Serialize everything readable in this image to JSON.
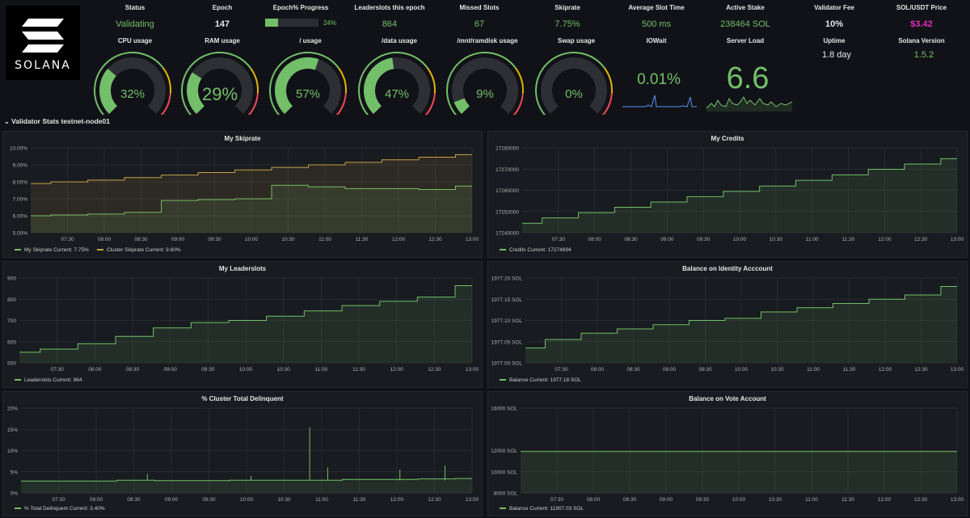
{
  "logo": {
    "text": "SOLANA"
  },
  "stats": [
    {
      "title": "Status",
      "value": "Validating",
      "color": "#73bf69"
    },
    {
      "title": "Epoch",
      "value": "147",
      "color": "#e6e6e6"
    },
    {
      "title": "Epoch% Progress",
      "value": "24%",
      "color": "#73bf69",
      "progress": 0.24
    },
    {
      "title": "Leaderslots this epoch",
      "value": "864",
      "color": "#73bf69"
    },
    {
      "title": "Missed Slots",
      "value": "67",
      "color": "#73bf69"
    },
    {
      "title": "Skiprate",
      "value": "7.75%",
      "color": "#73bf69"
    },
    {
      "title": "Average Slot Time",
      "value": "500 ms",
      "color": "#73bf69"
    },
    {
      "title": "Active Stake",
      "value": "238464 SOL",
      "color": "#73bf69"
    },
    {
      "title": "Validator Fee",
      "value": "10%",
      "color": "#e6e6e6"
    },
    {
      "title": "SOL/USDT Price",
      "value": "$3.42",
      "color": "#e02fbd"
    }
  ],
  "gauges": [
    {
      "title": "CPU usage",
      "value": "32%",
      "level": 0.32
    },
    {
      "title": "RAM usage",
      "value": "29%",
      "level": 0.29
    },
    {
      "title": "/ usage",
      "value": "57%",
      "level": 0.57
    },
    {
      "title": "/data usage",
      "value": "47%",
      "level": 0.47
    },
    {
      "title": "/mnt/ramdisk usage",
      "value": "9%",
      "level": 0.09
    },
    {
      "title": "Swap usage",
      "value": "0%",
      "level": 0.0
    }
  ],
  "iowait": {
    "title": "IOWait",
    "value": "0.01%"
  },
  "server_load": {
    "title": "Server Load",
    "value": "6.6"
  },
  "uptime": {
    "title": "Uptime",
    "value": "1.8 day"
  },
  "version": {
    "title": "Solana Version",
    "value": "1.5.2"
  },
  "row_title": "Validator Stats testnet-node01",
  "x_ticks": [
    "07:30",
    "08:00",
    "08:30",
    "09:00",
    "09:30",
    "10:00",
    "10:30",
    "11:00",
    "11:30",
    "12:00",
    "12:30",
    "13:00"
  ],
  "panels": [
    {
      "title": "My Skiprate",
      "y_ticks": [
        "10.00%",
        "9.00%",
        "8.00%",
        "7.00%",
        "6.00%",
        "5.00%"
      ],
      "legend": [
        "My Skiprate  Current: 7.75%",
        "Cluster Skiprate  Current: 9.60%"
      ]
    },
    {
      "title": "My Credits",
      "y_ticks": [
        "17280000",
        "17270000",
        "17260000",
        "17250000",
        "17240000"
      ],
      "legend": [
        "Credits  Current: 17274894"
      ]
    },
    {
      "title": "My Leaderslots",
      "y_ticks": [
        "900",
        "800",
        "700",
        "600",
        "500"
      ],
      "legend": [
        "Leaderslots  Current: 864"
      ]
    },
    {
      "title": "Balance on Identity Acccount",
      "y_ticks": [
        "1977.20 SOL",
        "1977.15 SOL",
        "1977.10 SOL",
        "1977.05 SOL",
        "1977.00 SOL"
      ],
      "legend": [
        "Balance  Current: 1977.18 SOL"
      ]
    },
    {
      "title": "% Cluster Total Delinquent",
      "y_ticks": [
        "20%",
        "15%",
        "10%",
        "5%",
        "0%"
      ],
      "legend": [
        "% Total Delinquent  Current: 3.40%"
      ]
    },
    {
      "title": "Balance on Vote Account",
      "y_ticks": [
        "16000 SOL",
        "12000 SOL",
        "10000 SOL",
        "8000 SOL"
      ],
      "legend": [
        "Balance  Current: 11907.03 SOL"
      ]
    }
  ],
  "chart_data": [
    {
      "type": "line",
      "title": "My Skiprate",
      "x": [
        "07:00",
        "07:30",
        "08:00",
        "08:30",
        "09:00",
        "09:30",
        "10:00",
        "10:30",
        "11:00",
        "11:30",
        "12:00",
        "12:30",
        "13:00"
      ],
      "ylim": [
        5,
        10
      ],
      "series": [
        {
          "name": "My Skiprate",
          "values": [
            6.0,
            6.05,
            6.1,
            6.2,
            6.9,
            6.95,
            7.0,
            7.8,
            7.7,
            7.6,
            7.6,
            7.55,
            7.75
          ],
          "color": "#73bf69"
        },
        {
          "name": "Cluster Skiprate",
          "values": [
            7.9,
            8.0,
            8.1,
            8.25,
            8.4,
            8.55,
            8.7,
            8.85,
            9.0,
            9.15,
            9.3,
            9.45,
            9.6
          ],
          "color": "#c8a047"
        }
      ]
    },
    {
      "type": "line",
      "title": "My Credits",
      "x": [
        "07:00",
        "07:30",
        "08:00",
        "08:30",
        "09:00",
        "09:30",
        "10:00",
        "10:30",
        "11:00",
        "11:30",
        "12:00",
        "12:30",
        "13:00"
      ],
      "ylim": [
        17240000,
        17280000
      ],
      "series": [
        {
          "name": "Credits",
          "values": [
            17244500,
            17247000,
            17249500,
            17252000,
            17254500,
            17257000,
            17259500,
            17262000,
            17264700,
            17267300,
            17269900,
            17272400,
            17274894
          ],
          "color": "#73bf69"
        }
      ]
    },
    {
      "type": "line",
      "title": "My Leaderslots",
      "x": [
        "07:00",
        "07:30",
        "08:00",
        "08:30",
        "09:00",
        "09:30",
        "10:00",
        "10:30",
        "11:00",
        "11:30",
        "12:00",
        "12:30",
        "13:00"
      ],
      "ylim": [
        500,
        900
      ],
      "series": [
        {
          "name": "Leaderslots",
          "values": [
            550,
            565,
            590,
            625,
            665,
            690,
            700,
            720,
            745,
            770,
            790,
            810,
            864
          ],
          "color": "#73bf69"
        }
      ]
    },
    {
      "type": "line",
      "title": "Balance on Identity Acccount",
      "x": [
        "07:00",
        "07:30",
        "08:00",
        "08:30",
        "09:00",
        "09:30",
        "10:00",
        "10:30",
        "11:00",
        "11:30",
        "12:00",
        "12:30",
        "13:00"
      ],
      "ylim": [
        1977.0,
        1977.2
      ],
      "series": [
        {
          "name": "Balance",
          "values": [
            1977.035,
            1977.055,
            1977.07,
            1977.08,
            1977.09,
            1977.1,
            1977.105,
            1977.12,
            1977.13,
            1977.14,
            1977.15,
            1977.16,
            1977.18
          ],
          "color": "#73bf69"
        }
      ]
    },
    {
      "type": "line",
      "title": "% Cluster Total Delinquent",
      "x": [
        "07:00",
        "07:30",
        "08:00",
        "08:30",
        "09:00",
        "09:30",
        "10:00",
        "10:30",
        "11:00",
        "11:30",
        "12:00",
        "12:30",
        "13:00"
      ],
      "ylim": [
        0,
        20
      ],
      "series": [
        {
          "name": "% Total Delinquent",
          "values": [
            2.8,
            2.8,
            2.8,
            3.0,
            2.9,
            2.9,
            3.0,
            3.0,
            3.0,
            3.2,
            3.2,
            3.3,
            3.4
          ],
          "color": "#73bf69"
        }
      ]
    },
    {
      "type": "line",
      "title": "Balance on Vote Account",
      "x": [
        "07:00",
        "07:30",
        "08:00",
        "08:30",
        "09:00",
        "09:30",
        "10:00",
        "10:30",
        "11:00",
        "11:30",
        "12:00",
        "12:30",
        "13:00"
      ],
      "ylim": [
        8000,
        16000
      ],
      "series": [
        {
          "name": "Balance",
          "values": [
            11907.03,
            11907.03,
            11907.03,
            11907.03,
            11907.03,
            11907.03,
            11907.03,
            11907.03,
            11907.03,
            11907.03,
            11907.03,
            11907.03,
            11907.03
          ],
          "color": "#73bf69"
        }
      ]
    }
  ]
}
